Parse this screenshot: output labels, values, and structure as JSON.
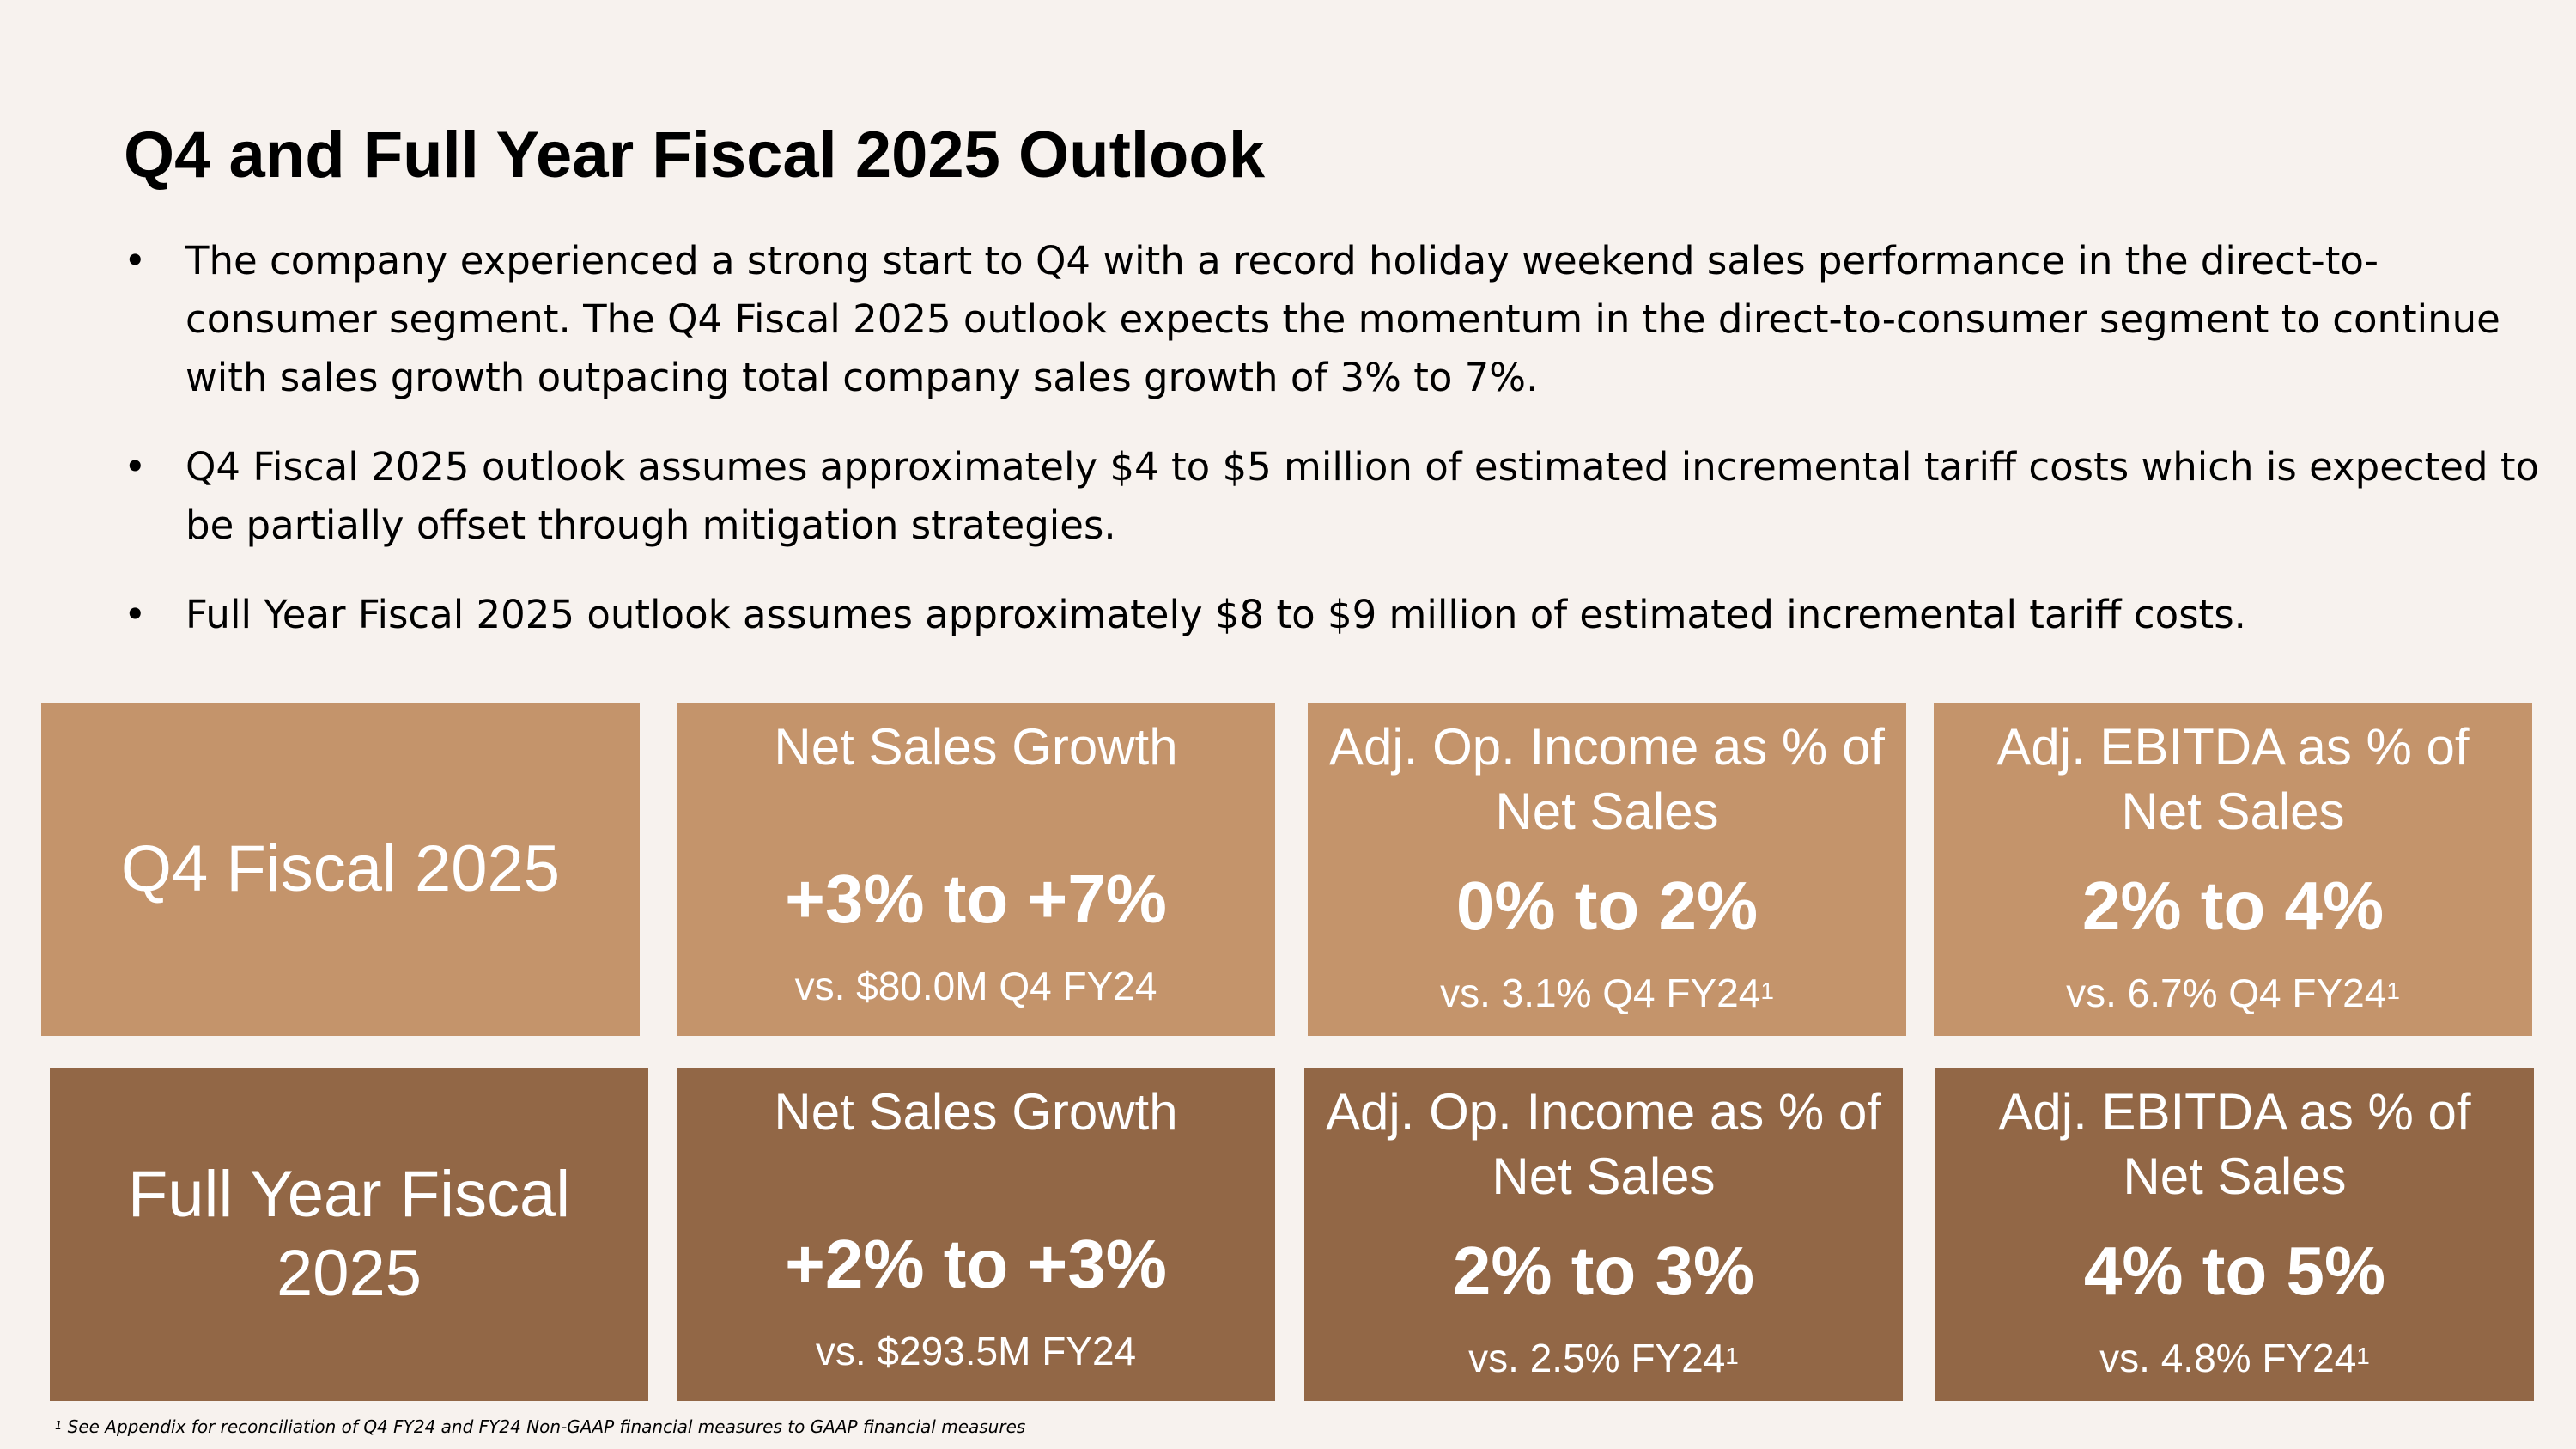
{
  "title": "Q4 and Full Year Fiscal 2025 Outlook",
  "bullet_symbol": "•",
  "bullets": [
    "The company experienced a strong start to Q4 with a record holiday weekend sales performance in the direct-to-consumer segment. The Q4 Fiscal 2025 outlook expects the momentum in the direct-to-consumer segment to continue with sales growth outpacing total company sales growth of 3% to 7%.",
    "Q4 Fiscal 2025 outlook assumes approximately $4 to $5 million of estimated incremental tariff costs which is expected to be partially offset through mitigation strategies.",
    "Full Year Fiscal 2025 outlook assumes approximately $8 to $9 million of estimated incremental tariff costs."
  ],
  "q4": {
    "label": "Q4 Fiscal 2025",
    "net_sales": {
      "header": "Net Sales Growth",
      "value": "+3% to +7%",
      "comparison": "vs. $80.0M Q4 FY24"
    },
    "adj_op_income": {
      "header": "Adj. Op. Income as % of Net Sales",
      "value": "0% to 2%",
      "comparison": "vs. 3.1% Q4 FY24",
      "footnote_mark": "1"
    },
    "adj_ebitda": {
      "header": "Adj. EBITDA as % of Net Sales",
      "value": "2% to 4%",
      "comparison": "vs. 6.7% Q4 FY24",
      "footnote_mark": "1"
    }
  },
  "full_year": {
    "label": "Full Year Fiscal 2025",
    "net_sales": {
      "header": "Net Sales Growth",
      "value": "+2% to +3%",
      "comparison": "vs. $293.5M FY24"
    },
    "adj_op_income": {
      "header": "Adj. Op. Income as % of Net Sales",
      "value": "2% to 3%",
      "comparison": "vs. 2.5% FY24",
      "footnote_mark": "1"
    },
    "adj_ebitda": {
      "header": "Adj. EBITDA as % of Net Sales",
      "value": "4% to 5%",
      "comparison": "vs. 4.8% FY24",
      "footnote_mark": "1"
    }
  },
  "footnote": {
    "mark": "1",
    "text": "See Appendix for reconciliation of Q4 FY24 and FY24 Non-GAAP financial measures to GAAP financial measures"
  },
  "colors": {
    "background": "#f7f2ee",
    "q4_box": "#c4946b",
    "full_year_box": "#926746",
    "box_text": "#ffffff"
  }
}
